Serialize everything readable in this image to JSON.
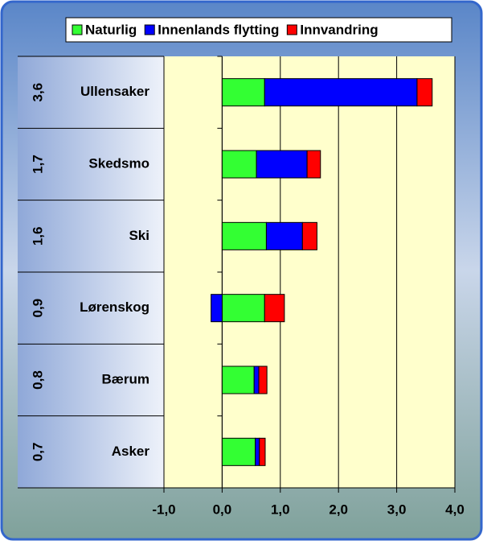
{
  "chart_data": {
    "type": "stacked_barh",
    "categories": [
      "Ullensaker",
      "Skedsmo",
      "Ski",
      "Lørenskog",
      "Bærum",
      "Asker"
    ],
    "total_labels": [
      "3,6",
      "1,7",
      "1,6",
      "0,9",
      "0,8",
      "0,7"
    ],
    "series": [
      {
        "name": "Naturlig",
        "color": "#33ff33",
        "values": [
          0.73,
          0.59,
          0.76,
          0.73,
          0.55,
          0.57
        ]
      },
      {
        "name": "Innenlands flytting",
        "color": "#0000ff",
        "values": [
          2.62,
          0.87,
          0.62,
          -0.19,
          0.08,
          0.07
        ]
      },
      {
        "name": "Innvandring",
        "color": "#ff0000",
        "values": [
          0.26,
          0.23,
          0.25,
          0.34,
          0.14,
          0.1
        ]
      }
    ],
    "xlim": [
      -1,
      4
    ],
    "xticks": [
      {
        "value": -1,
        "label": "-1,0"
      },
      {
        "value": 0,
        "label": "0,0"
      },
      {
        "value": 1,
        "label": "1,0"
      },
      {
        "value": 2,
        "label": "2,0"
      },
      {
        "value": 3,
        "label": "3,0"
      },
      {
        "value": 4,
        "label": "4,0"
      }
    ],
    "grid": true,
    "legend": "top"
  }
}
